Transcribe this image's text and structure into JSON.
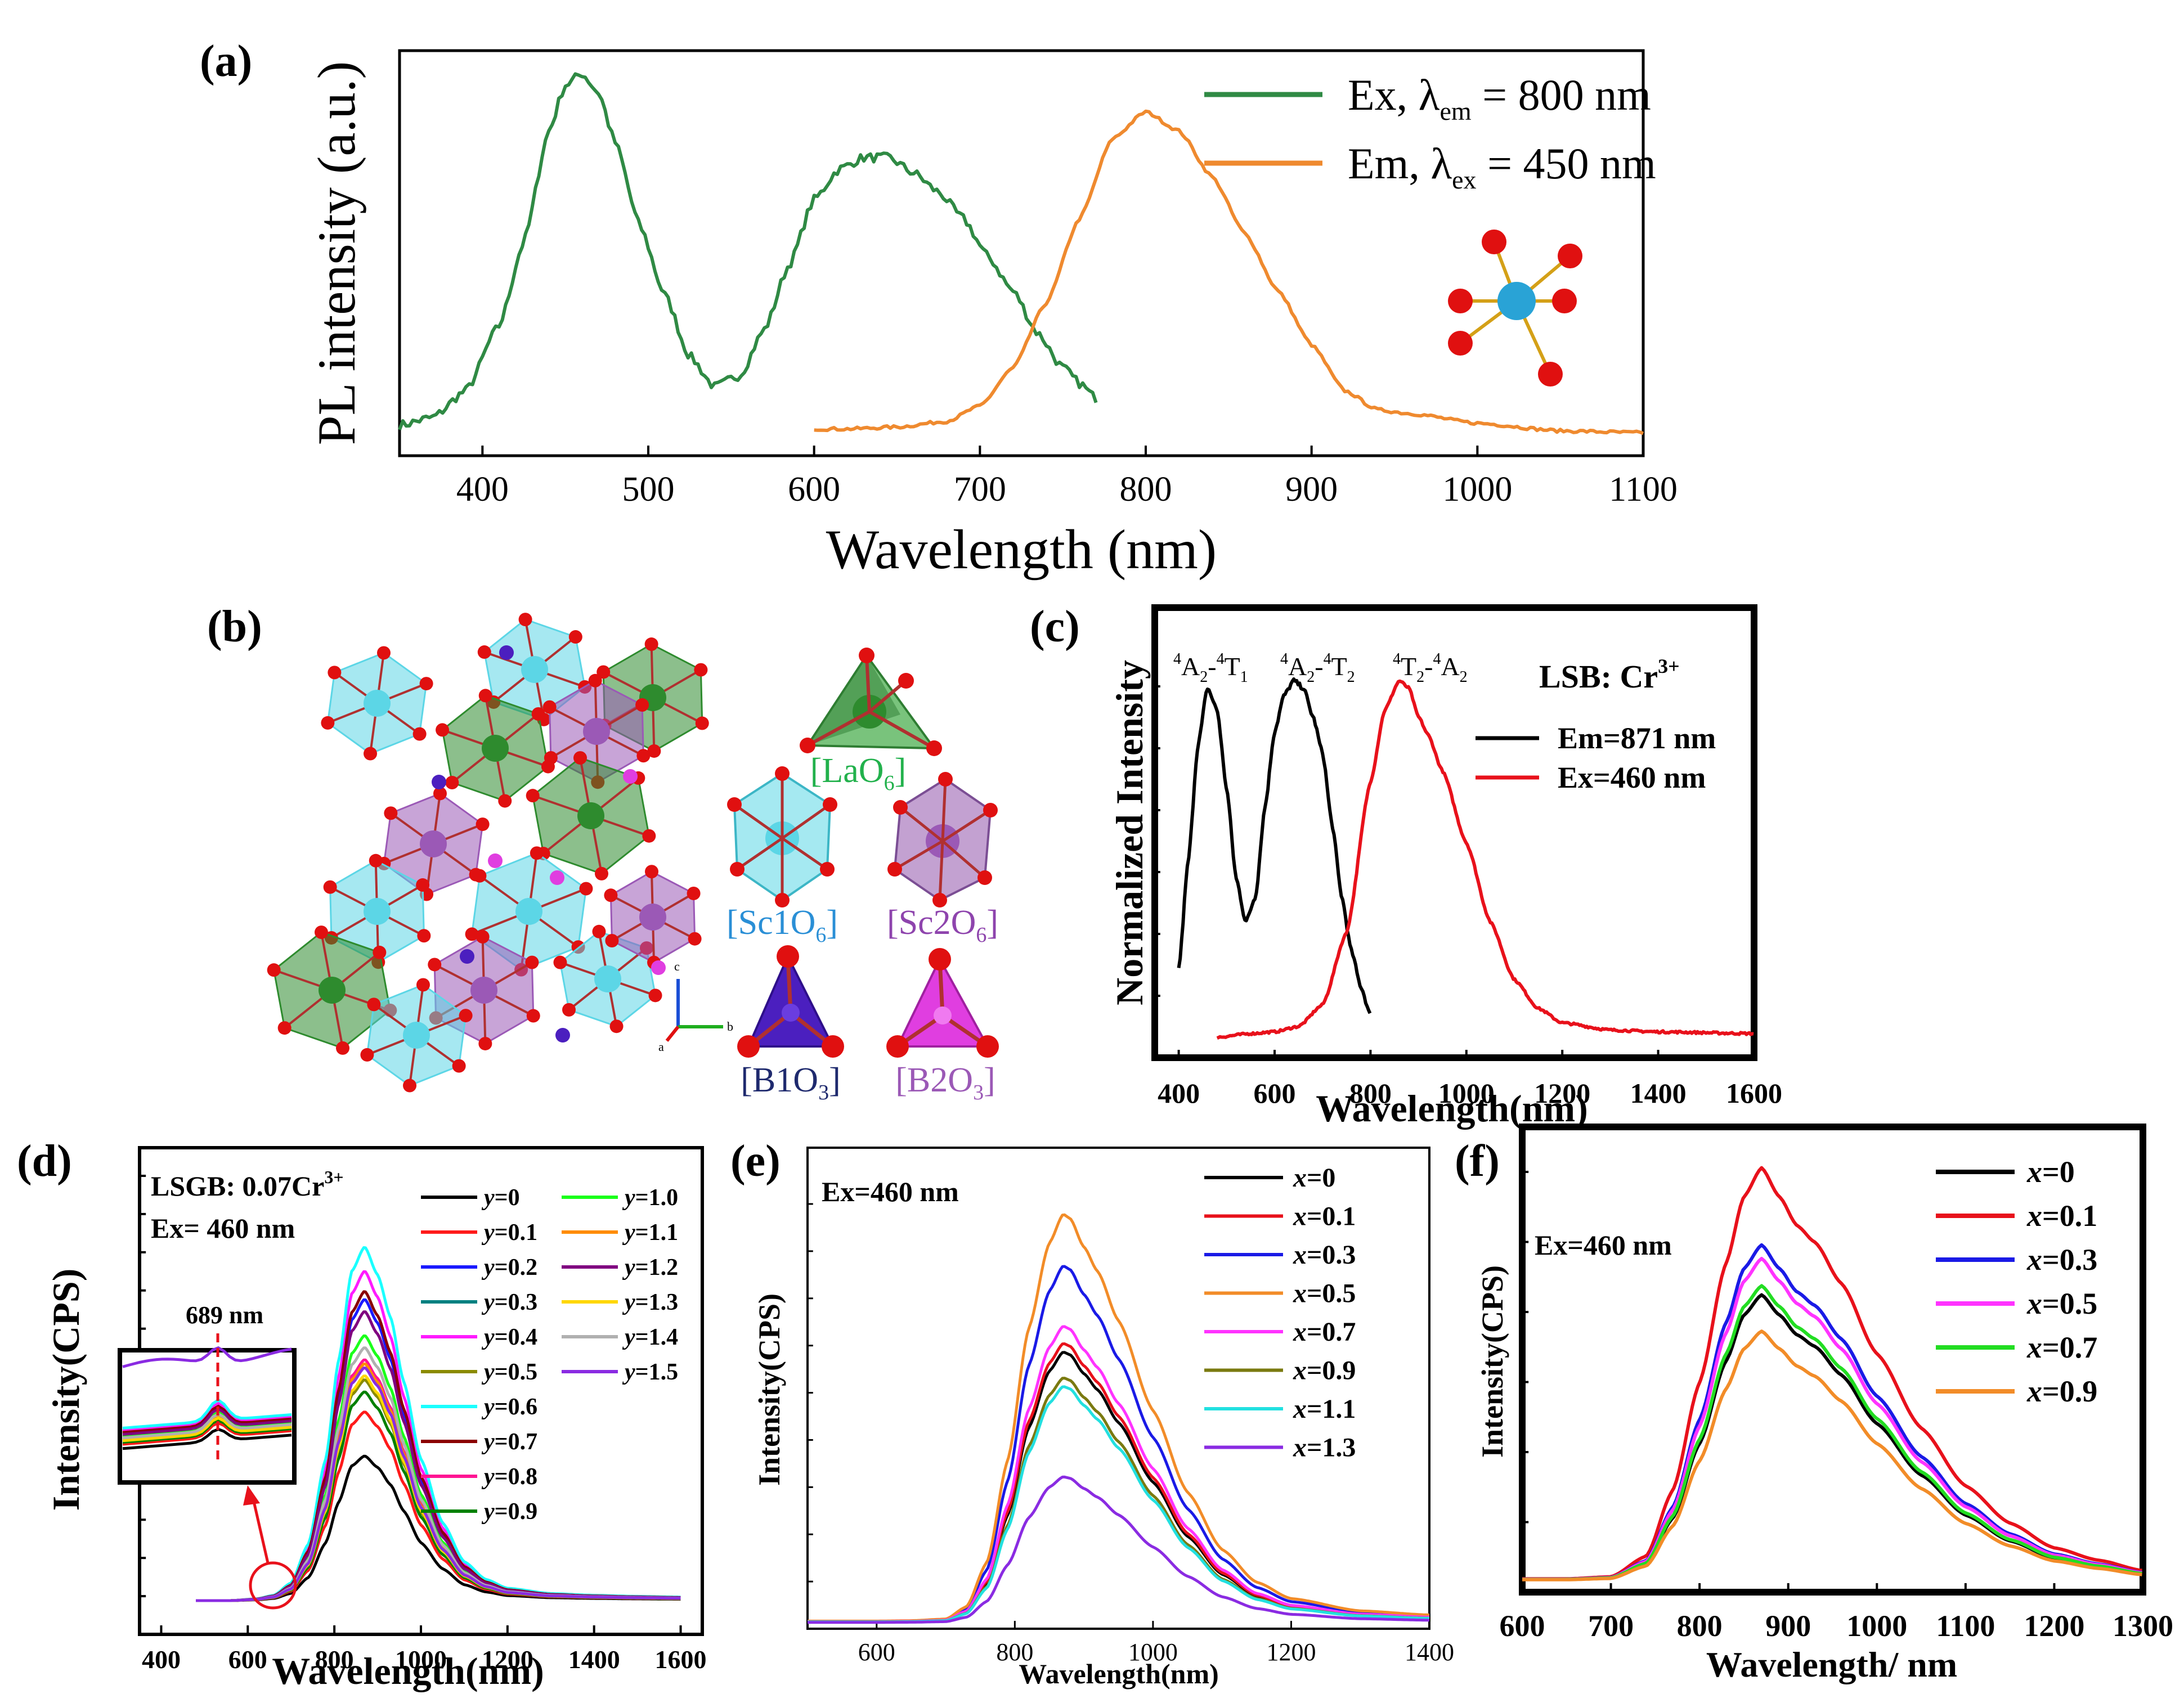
{
  "chart_data": [
    {
      "panel": "(a)",
      "type": "line",
      "ylabel": "PL intensity (a.u.)",
      "xlabel": "Wavelength (nm)",
      "xlim": [
        350,
        1100
      ],
      "ylim": [
        0,
        1.06
      ],
      "xticks": [
        400,
        500,
        600,
        700,
        800,
        900,
        1000,
        1100
      ],
      "legend": [
        {
          "name": "Ex,  λ",
          "sub": "em",
          "rest": " = 800 nm",
          "color": "#2f8a44"
        },
        {
          "name": "Em, λ",
          "sub": "ex",
          "rest": " = 450 nm",
          "color": "#ef8a2f"
        }
      ],
      "series": [
        {
          "name": "Ex",
          "color": "#2f8a44",
          "noise": 0.012,
          "x": [
            350,
            370,
            390,
            410,
            425,
            440,
            450,
            460,
            470,
            480,
            495,
            510,
            525,
            540,
            555,
            570,
            585,
            600,
            615,
            630,
            645,
            660,
            675,
            690,
            705,
            720,
            735,
            750,
            760,
            770
          ],
          "y": [
            0.08,
            0.1,
            0.17,
            0.34,
            0.56,
            0.85,
            0.97,
            1.0,
            0.95,
            0.82,
            0.6,
            0.42,
            0.26,
            0.18,
            0.21,
            0.33,
            0.5,
            0.67,
            0.75,
            0.78,
            0.78,
            0.74,
            0.69,
            0.62,
            0.52,
            0.43,
            0.32,
            0.23,
            0.19,
            0.15
          ]
        },
        {
          "name": "Em",
          "color": "#ef8a2f",
          "noise": 0.004,
          "x": [
            600,
            620,
            650,
            680,
            700,
            720,
            740,
            760,
            780,
            800,
            820,
            840,
            860,
            880,
            900,
            920,
            940,
            960,
            1000,
            1050,
            1100
          ],
          "y": [
            0.07,
            0.07,
            0.075,
            0.09,
            0.13,
            0.23,
            0.4,
            0.62,
            0.83,
            0.9,
            0.85,
            0.73,
            0.58,
            0.43,
            0.29,
            0.17,
            0.12,
            0.11,
            0.085,
            0.065,
            0.06
          ]
        }
      ]
    },
    {
      "panel": "(b)",
      "type": "structure",
      "labels": [
        "[LaO6]",
        "[Sc1O6]",
        "[Sc2O6]",
        "[B1O3]",
        "[B2O3]"
      ]
    },
    {
      "panel": "(c)",
      "type": "line",
      "ylabel": "Normalized Intensity",
      "xlabel": "Wavelength(nm)",
      "xlim": [
        350,
        1600
      ],
      "ylim": [
        0,
        1.0
      ],
      "xticks": [
        400,
        600,
        800,
        1000,
        1200,
        1400,
        1600
      ],
      "annotations": [
        "4A2-4T1",
        "4A2-4T2",
        "4T2-4A2"
      ],
      "title": "LSB: Cr3+",
      "legend": [
        {
          "name": "Em=871 nm",
          "color": "#000000"
        },
        {
          "name": "Ex=460 nm",
          "color": "#e8111b"
        }
      ],
      "series": [
        {
          "name": "Em=871 nm",
          "color": "#000000",
          "noise": 0.006,
          "x": [
            400,
            420,
            440,
            460,
            480,
            500,
            520,
            540,
            560,
            580,
            600,
            620,
            640,
            660,
            680,
            700,
            720,
            740,
            760,
            780,
            800
          ],
          "y": [
            0.2,
            0.5,
            0.82,
            0.98,
            0.92,
            0.7,
            0.45,
            0.33,
            0.4,
            0.65,
            0.86,
            0.96,
            1.0,
            0.98,
            0.9,
            0.8,
            0.6,
            0.4,
            0.25,
            0.15,
            0.07
          ]
        },
        {
          "name": "Ex=460 nm",
          "color": "#e8111b",
          "noise": 0.003,
          "x": [
            480,
            550,
            600,
            650,
            700,
            750,
            800,
            830,
            860,
            880,
            900,
            920,
            950,
            1000,
            1050,
            1100,
            1150,
            1200,
            1300,
            1400,
            1600
          ],
          "y": [
            0.01,
            0.02,
            0.025,
            0.04,
            0.1,
            0.3,
            0.72,
            0.92,
            1.0,
            0.98,
            0.9,
            0.85,
            0.75,
            0.55,
            0.33,
            0.17,
            0.09,
            0.05,
            0.03,
            0.025,
            0.02
          ]
        }
      ]
    },
    {
      "panel": "(d)",
      "type": "line",
      "ylabel": "Intensity(CPS)",
      "xlabel": "Wavelength(nm)",
      "xlim": [
        350,
        1650
      ],
      "ylim": [
        0,
        1.0
      ],
      "xticks": [
        400,
        600,
        800,
        1000,
        1200,
        1400,
        1600
      ],
      "title": [
        "LSGB: 0.07Cr3+",
        "Ex= 460 nm"
      ],
      "inset_label": "689 nm",
      "legend_var": "y",
      "shape": {
        "x": [
          480,
          560,
          620,
          660,
          700,
          740,
          780,
          810,
          840,
          870,
          900,
          930,
          960,
          1000,
          1050,
          1100,
          1150,
          1200,
          1300,
          1400,
          1500,
          1600
        ],
        "y": [
          0.0,
          0.0,
          0.005,
          0.015,
          0.05,
          0.16,
          0.4,
          0.68,
          0.93,
          1.0,
          0.92,
          0.8,
          0.62,
          0.4,
          0.22,
          0.11,
          0.06,
          0.035,
          0.02,
          0.015,
          0.012,
          0.01
        ]
      },
      "series": [
        {
          "label": "y=0",
          "color": "#000000",
          "peak": 0.36
        },
        {
          "label": "y=0.1",
          "color": "#ff1a1a",
          "peak": 0.47
        },
        {
          "label": "y=0.2",
          "color": "#1a1aff",
          "peak": 0.75
        },
        {
          "label": "y=0.3",
          "color": "#008080",
          "peak": 0.55
        },
        {
          "label": "y=0.4",
          "color": "#ff1aff",
          "peak": 0.82
        },
        {
          "label": "y=0.5",
          "color": "#8b8b00",
          "peak": 0.55
        },
        {
          "label": "y=0.6",
          "color": "#1affff",
          "peak": 0.88
        },
        {
          "label": "y=0.7",
          "color": "#8b0000",
          "peak": 0.77
        },
        {
          "label": "y=0.8",
          "color": "#ff1493",
          "peak": 0.6
        },
        {
          "label": "y=0.9",
          "color": "#008000",
          "peak": 0.52
        },
        {
          "label": "y=1.0",
          "color": "#1aff1a",
          "peak": 0.66
        },
        {
          "label": "y=1.1",
          "color": "#ff8c00",
          "peak": 0.59
        },
        {
          "label": "y=1.2",
          "color": "#800080",
          "peak": 0.72
        },
        {
          "label": "y=1.3",
          "color": "#ffd700",
          "peak": 0.56
        },
        {
          "label": "y=1.4",
          "color": "#b0b0b0",
          "peak": 0.63
        },
        {
          "label": "y=1.5",
          "color": "#8a2be2",
          "peak": 0.58
        }
      ]
    },
    {
      "panel": "(e)",
      "type": "line",
      "ylabel": "Intensity(CPS)",
      "xlabel": "Wavelength(nm)",
      "xlim": [
        500,
        1400
      ],
      "ylim": [
        0,
        1.0
      ],
      "xticks": [
        600,
        800,
        1000,
        1200,
        1400
      ],
      "title": "Ex=460 nm",
      "legend_var": "x",
      "shape": {
        "x": [
          500,
          600,
          650,
          700,
          730,
          760,
          790,
          820,
          850,
          870,
          880,
          900,
          920,
          950,
          1000,
          1050,
          1100,
          1150,
          1200,
          1300,
          1400
        ],
        "y": [
          0.005,
          0.005,
          0.006,
          0.01,
          0.04,
          0.15,
          0.4,
          0.72,
          0.93,
          1.0,
          0.99,
          0.92,
          0.86,
          0.74,
          0.52,
          0.32,
          0.18,
          0.1,
          0.06,
          0.03,
          0.02
        ]
      },
      "series": [
        {
          "label": "x=0",
          "color": "#000000",
          "peak": 0.63
        },
        {
          "label": "x=0.1",
          "color": "#e8111b",
          "peak": 0.65
        },
        {
          "label": "x=0.3",
          "color": "#1a1ae6",
          "peak": 0.83
        },
        {
          "label": "x=0.5",
          "color": "#f28c28",
          "peak": 0.95
        },
        {
          "label": "x=0.7",
          "color": "#ff33ff",
          "peak": 0.69
        },
        {
          "label": "x=0.9",
          "color": "#7a7a10",
          "peak": 0.57
        },
        {
          "label": "x=1.1",
          "color": "#22e0e0",
          "peak": 0.55
        },
        {
          "label": "x=1.3",
          "color": "#8a2be2",
          "peak": 0.34
        }
      ]
    },
    {
      "panel": "(f)",
      "type": "line",
      "ylabel": "Intensity(CPS)",
      "xlabel": "Wavelength/ nm",
      "xlim": [
        600,
        1300
      ],
      "ylim": [
        0,
        1.0
      ],
      "xticks": [
        600,
        700,
        800,
        900,
        1000,
        1100,
        1200,
        1300
      ],
      "title": "Ex=460 nm",
      "legend_var": "x",
      "shape": {
        "x": [
          600,
          650,
          700,
          740,
          770,
          800,
          830,
          850,
          870,
          890,
          910,
          930,
          960,
          1000,
          1050,
          1100,
          1150,
          1200,
          1250,
          1300
        ],
        "y": [
          0.005,
          0.005,
          0.01,
          0.06,
          0.22,
          0.48,
          0.77,
          0.93,
          1.0,
          0.93,
          0.86,
          0.82,
          0.72,
          0.55,
          0.37,
          0.23,
          0.14,
          0.08,
          0.05,
          0.025
        ]
      },
      "series": [
        {
          "label": "x=0",
          "color": "#000000",
          "peak": 0.63
        },
        {
          "label": "x=0.1",
          "color": "#e8111b",
          "peak": 0.91
        },
        {
          "label": "x=0.3",
          "color": "#1a1ae6",
          "peak": 0.74
        },
        {
          "label": "x=0.5",
          "color": "#ff33ff",
          "peak": 0.71
        },
        {
          "label": "x=0.7",
          "color": "#22dd22",
          "peak": 0.65
        },
        {
          "label": "x=0.9",
          "color": "#f28c28",
          "peak": 0.55
        }
      ]
    }
  ],
  "structure_colors": {
    "La": "#2e8b2e",
    "Sc1": "#5cd6e6",
    "Sc2": "#9b59b6",
    "B1": "#4b1fbf",
    "B2": "#e03ee0",
    "O": "#e01010"
  }
}
